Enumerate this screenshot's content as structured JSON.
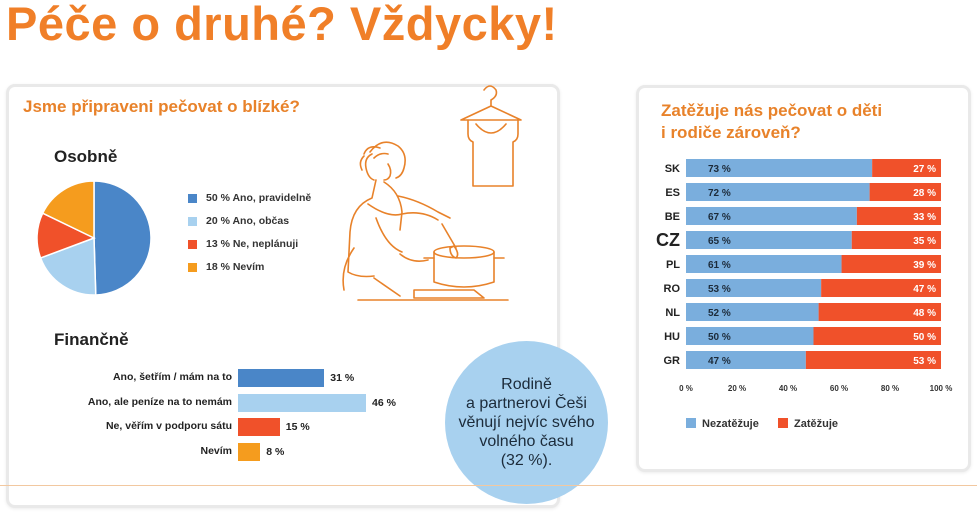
{
  "title": "Péče o druhé? Vždycky!",
  "colors": {
    "accent": "#f07f28",
    "blue_dark": "#4a86c8",
    "blue_light": "#a8d1ef",
    "red_orange": "#f0512a",
    "orange": "#f59c1e"
  },
  "left_panel": {
    "heading": "Jsme připraveni pečovat o blízké?",
    "personal_title": "Osobně",
    "financial_title": "Finančně"
  },
  "bubble_text": "Rodině\na partnerovi Češi\nvěnují nejvíc svého\nvolného času\n(32 %).",
  "right_panel": {
    "heading_line1": "Zatěžuje nás pečovat o děti",
    "heading_line2": "i rodiče zároveň?"
  },
  "chart_data": [
    {
      "type": "pie",
      "title": "Osobně",
      "slices": [
        {
          "label": "50 % Ano, pravidelně",
          "value": 50,
          "color": "#4a86c8"
        },
        {
          "label": "20 % Ano, občas",
          "value": 20,
          "color": "#a8d1ef"
        },
        {
          "label": "13 % Ne, neplánuji",
          "value": 13,
          "color": "#f0512a"
        },
        {
          "label": "18 % Nevím",
          "value": 18,
          "color": "#f59c1e"
        }
      ]
    },
    {
      "type": "bar",
      "orientation": "horizontal",
      "title": "Finančně",
      "categories": [
        "Ano, šetřím / mám na to",
        "Ano, ale peníze na to nemám",
        "Ne, věřím v podporu sátu",
        "Nevím"
      ],
      "values": [
        31,
        46,
        15,
        8
      ],
      "value_labels": [
        "31 %",
        "46 %",
        "15 %",
        "8 %"
      ],
      "colors": [
        "#4a86c8",
        "#a8d1ef",
        "#f0512a",
        "#f59c1e"
      ]
    },
    {
      "type": "bar",
      "orientation": "horizontal",
      "stacked": true,
      "categories": [
        "SK",
        "ES",
        "BE",
        "CZ",
        "PL",
        "RO",
        "NL",
        "HU",
        "GR"
      ],
      "series": [
        {
          "name": "Nezatěžuje",
          "values": [
            73,
            72,
            67,
            65,
            61,
            53,
            52,
            50,
            47
          ],
          "labels": [
            "73 %",
            "72 %",
            "67 %",
            "65 %",
            "61 %",
            "53 %",
            "52 %",
            "50 %",
            "47 %"
          ],
          "color": "#7aaedd"
        },
        {
          "name": "Zatěžuje",
          "values": [
            27,
            28,
            33,
            35,
            39,
            47,
            48,
            50,
            53
          ],
          "labels": [
            "27 %",
            "28 %",
            "33 %",
            "35 %",
            "39 %",
            "47 %",
            "48 %",
            "50 %",
            "53 %"
          ],
          "color": "#f0512a"
        }
      ],
      "xlim": [
        0,
        100
      ],
      "xticks": [
        "0 %",
        "20 %",
        "40 %",
        "60 %",
        "80 %",
        "100 %"
      ],
      "legend": "bottom"
    }
  ]
}
